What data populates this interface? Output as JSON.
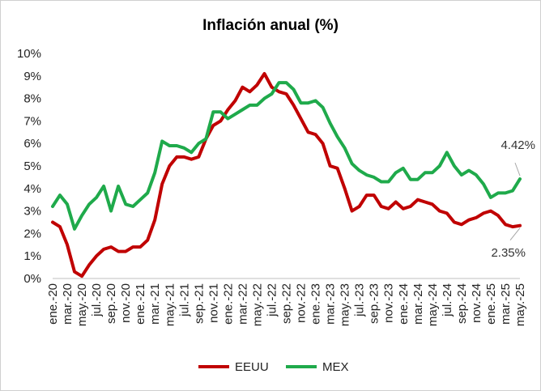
{
  "chart_data": {
    "type": "line",
    "title": "Inflación anual (%)",
    "xlabel": "",
    "ylabel": "",
    "ylim": [
      0,
      10
    ],
    "y_ticks": [
      "0%",
      "1%",
      "2%",
      "3%",
      "4%",
      "5%",
      "6%",
      "7%",
      "8%",
      "9%",
      "10%"
    ],
    "x_tick_labels": [
      "ene.-20",
      "mar.-20",
      "may.-20",
      "jul.-20",
      "sep.-20",
      "nov.-20",
      "ene.-21",
      "mar.-21",
      "may.-21",
      "jul.-21",
      "sep.-21",
      "nov.-21",
      "ene.-22",
      "mar.-22",
      "may.-22",
      "jul.-22",
      "sep.-22",
      "nov.-22",
      "ene.-23",
      "mar.-23",
      "may.-23",
      "jul.-23",
      "sep.-23",
      "nov.-23",
      "ene.-24",
      "mar.-24",
      "may.-24",
      "jul.-24",
      "sep.-24",
      "nov.-24",
      "ene.-25",
      "mar.-25",
      "may.-25"
    ],
    "x": [
      "ene.-20",
      "feb.-20",
      "mar.-20",
      "abr.-20",
      "may.-20",
      "jun.-20",
      "jul.-20",
      "ago.-20",
      "sep.-20",
      "oct.-20",
      "nov.-20",
      "dic.-20",
      "ene.-21",
      "feb.-21",
      "mar.-21",
      "abr.-21",
      "may.-21",
      "jun.-21",
      "jul.-21",
      "ago.-21",
      "sep.-21",
      "oct.-21",
      "nov.-21",
      "dic.-21",
      "ene.-22",
      "feb.-22",
      "mar.-22",
      "abr.-22",
      "may.-22",
      "jun.-22",
      "jul.-22",
      "ago.-22",
      "sep.-22",
      "oct.-22",
      "nov.-22",
      "dic.-22",
      "ene.-23",
      "feb.-23",
      "mar.-23",
      "abr.-23",
      "may.-23",
      "jun.-23",
      "jul.-23",
      "ago.-23",
      "sep.-23",
      "oct.-23",
      "nov.-23",
      "dic.-23",
      "ene.-24",
      "feb.-24",
      "mar.-24",
      "abr.-24",
      "may.-24",
      "jun.-24",
      "jul.-24",
      "ago.-24",
      "sep.-24",
      "oct.-24",
      "nov.-24",
      "dic.-24",
      "ene.-25",
      "feb.-25",
      "mar.-25",
      "abr.-25",
      "may.-25"
    ],
    "series": [
      {
        "name": "EEUU",
        "color": "#c00000",
        "values": [
          2.5,
          2.3,
          1.5,
          0.3,
          0.1,
          0.6,
          1.0,
          1.3,
          1.4,
          1.2,
          1.2,
          1.4,
          1.4,
          1.7,
          2.6,
          4.2,
          5.0,
          5.4,
          5.4,
          5.3,
          5.4,
          6.2,
          6.8,
          7.0,
          7.5,
          7.9,
          8.5,
          8.3,
          8.6,
          9.1,
          8.5,
          8.3,
          8.2,
          7.7,
          7.1,
          6.5,
          6.4,
          6.0,
          5.0,
          4.9,
          4.0,
          3.0,
          3.2,
          3.7,
          3.7,
          3.2,
          3.1,
          3.4,
          3.1,
          3.2,
          3.5,
          3.4,
          3.3,
          3.0,
          2.9,
          2.5,
          2.4,
          2.6,
          2.7,
          2.9,
          3.0,
          2.8,
          2.4,
          2.3,
          2.35
        ],
        "end_label": "2.35%"
      },
      {
        "name": "MEX",
        "color": "#1faa4b",
        "values": [
          3.2,
          3.7,
          3.3,
          2.2,
          2.8,
          3.3,
          3.6,
          4.1,
          3.0,
          4.1,
          3.3,
          3.2,
          3.5,
          3.8,
          4.7,
          6.1,
          5.9,
          5.9,
          5.8,
          5.6,
          6.0,
          6.2,
          7.4,
          7.4,
          7.1,
          7.3,
          7.5,
          7.7,
          7.7,
          8.0,
          8.2,
          8.7,
          8.7,
          8.4,
          7.8,
          7.8,
          7.9,
          7.6,
          6.9,
          6.3,
          5.8,
          5.1,
          4.8,
          4.6,
          4.5,
          4.3,
          4.3,
          4.7,
          4.9,
          4.4,
          4.4,
          4.7,
          4.7,
          5.0,
          5.6,
          5.0,
          4.6,
          4.8,
          4.6,
          4.2,
          3.6,
          3.8,
          3.8,
          3.9,
          4.42
        ],
        "end_label": "4.42%"
      }
    ],
    "grid": false,
    "legend": "bottom-center"
  }
}
